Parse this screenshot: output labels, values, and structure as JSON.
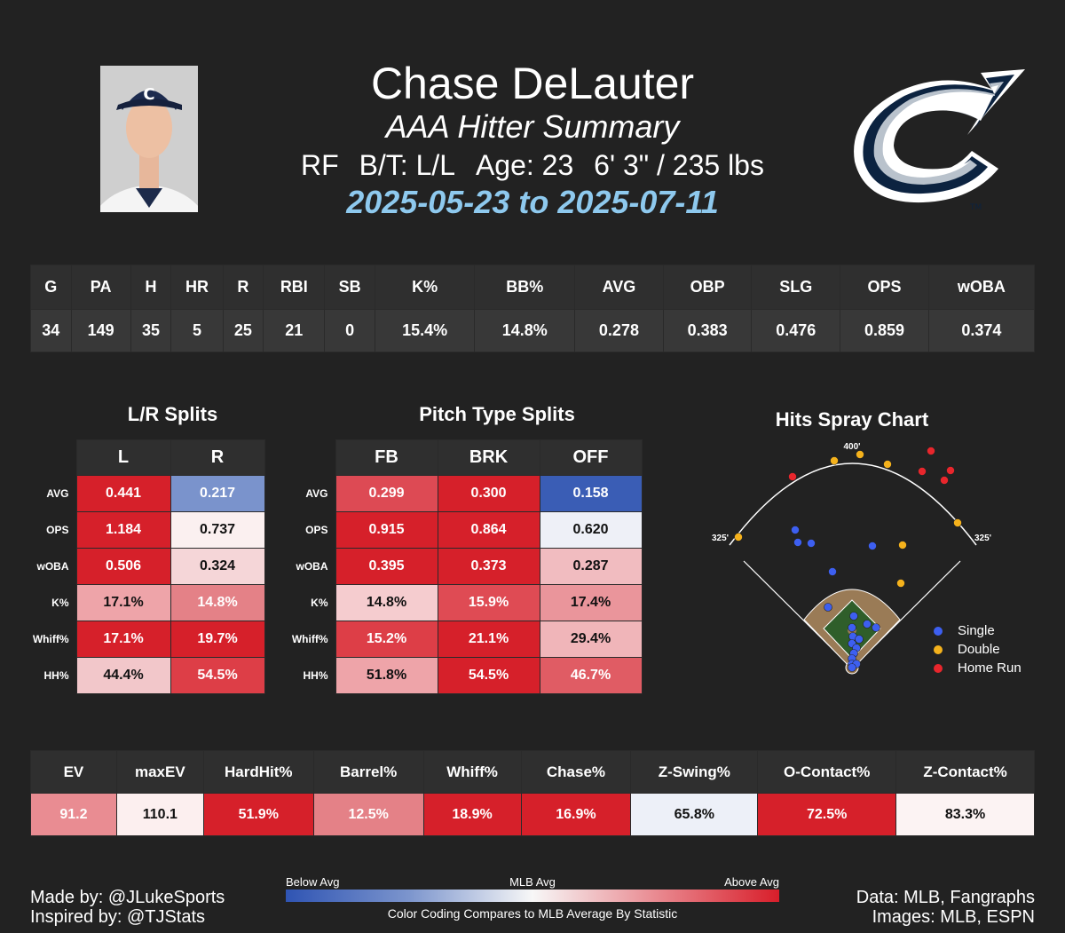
{
  "header": {
    "name": "Chase DeLauter",
    "subtitle": "AAA Hitter Summary",
    "position": "RF",
    "bat_throw": "B/T: L/L",
    "age": "Age: 23",
    "height_weight": "6' 3\" / 235 lbs",
    "date_range": "2025-05-23 to 2025-07-11"
  },
  "main_stats": {
    "headers": [
      "G",
      "PA",
      "H",
      "HR",
      "R",
      "RBI",
      "SB",
      "K%",
      "BB%",
      "AVG",
      "OBP",
      "SLG",
      "OPS",
      "wOBA"
    ],
    "values": [
      "34",
      "149",
      "35",
      "5",
      "25",
      "21",
      "0",
      "15.4%",
      "14.8%",
      "0.278",
      "0.383",
      "0.476",
      "0.859",
      "0.374"
    ]
  },
  "lr_splits": {
    "title": "L/R Splits",
    "columns": [
      "L",
      "R"
    ],
    "rows": [
      {
        "label": "AVG",
        "cells": [
          {
            "v": "0.441",
            "c": "#d6202a"
          },
          {
            "v": "0.217",
            "c": "#7a93cc"
          }
        ]
      },
      {
        "label": "OPS",
        "cells": [
          {
            "v": "1.184",
            "c": "#d6202a"
          },
          {
            "v": "0.737",
            "c": "#fbf0f0"
          }
        ]
      },
      {
        "label": "wOBA",
        "cells": [
          {
            "v": "0.506",
            "c": "#d6202a"
          },
          {
            "v": "0.324",
            "c": "#f5d6d8"
          }
        ]
      },
      {
        "label": "K%",
        "cells": [
          {
            "v": "17.1%",
            "c": "#eea4a9"
          },
          {
            "v": "14.8%",
            "c": "#e48187"
          }
        ]
      },
      {
        "label": "Whiff%",
        "cells": [
          {
            "v": "17.1%",
            "c": "#d6202a"
          },
          {
            "v": "19.7%",
            "c": "#d6202a"
          }
        ]
      },
      {
        "label": "HH%",
        "cells": [
          {
            "v": "44.4%",
            "c": "#f2c7ca"
          },
          {
            "v": "54.5%",
            "c": "#dd3e47"
          }
        ]
      }
    ]
  },
  "pitch_splits": {
    "title": "Pitch Type Splits",
    "columns": [
      "FB",
      "BRK",
      "OFF"
    ],
    "rows": [
      {
        "label": "AVG",
        "cells": [
          {
            "v": "0.299",
            "c": "#dd4a54"
          },
          {
            "v": "0.300",
            "c": "#d6202a"
          },
          {
            "v": "0.158",
            "c": "#3a5db5"
          }
        ]
      },
      {
        "label": "OPS",
        "cells": [
          {
            "v": "0.915",
            "c": "#d6202a"
          },
          {
            "v": "0.864",
            "c": "#d6202a"
          },
          {
            "v": "0.620",
            "c": "#eef0f7"
          }
        ]
      },
      {
        "label": "wOBA",
        "cells": [
          {
            "v": "0.395",
            "c": "#d6202a"
          },
          {
            "v": "0.373",
            "c": "#d6202a"
          },
          {
            "v": "0.287",
            "c": "#f1bcc0"
          }
        ]
      },
      {
        "label": "K%",
        "cells": [
          {
            "v": "14.8%",
            "c": "#f5cccf"
          },
          {
            "v": "15.9%",
            "c": "#df4b54"
          },
          {
            "v": "17.4%",
            "c": "#ea959b"
          }
        ]
      },
      {
        "label": "Whiff%",
        "cells": [
          {
            "v": "15.2%",
            "c": "#dd3e47"
          },
          {
            "v": "21.1%",
            "c": "#d6202a"
          },
          {
            "v": "29.4%",
            "c": "#f0b5b9"
          }
        ]
      },
      {
        "label": "HH%",
        "cells": [
          {
            "v": "51.8%",
            "c": "#eea4a9"
          },
          {
            "v": "54.5%",
            "c": "#d6202a"
          },
          {
            "v": "46.7%",
            "c": "#e05c64"
          }
        ]
      }
    ]
  },
  "spray": {
    "title": "Hits Spray Chart",
    "distances": {
      "center": "400'",
      "left": "325'",
      "right": "325'"
    },
    "legend": [
      {
        "label": "Single",
        "color": "#3d5ff0"
      },
      {
        "label": "Double",
        "color": "#f5b21c"
      },
      {
        "label": "Home Run",
        "color": "#e8262c"
      }
    ]
  },
  "bottom_stats": {
    "headers": [
      "EV",
      "maxEV",
      "HardHit%",
      "Barrel%",
      "Whiff%",
      "Chase%",
      "Z-Swing%",
      "O-Contact%",
      "Z-Contact%"
    ],
    "values": [
      {
        "v": "91.2",
        "c": "#e98c92"
      },
      {
        "v": "110.1",
        "c": "#fcefef"
      },
      {
        "v": "51.9%",
        "c": "#d6202a"
      },
      {
        "v": "12.5%",
        "c": "#e48187"
      },
      {
        "v": "18.9%",
        "c": "#d6202a"
      },
      {
        "v": "16.9%",
        "c": "#d6202a"
      },
      {
        "v": "65.8%",
        "c": "#edf0f8"
      },
      {
        "v": "72.5%",
        "c": "#d6202a"
      },
      {
        "v": "83.3%",
        "c": "#fcf3f3"
      }
    ]
  },
  "footer": {
    "made_by": "Made by: @JLukeSports",
    "inspired_by": "Inspired by: @TJStats",
    "data_source": "Data: MLB, Fangraphs",
    "images_source": "Images: MLB, ESPN",
    "scale_below": "Below Avg",
    "scale_mid": "MLB Avg",
    "scale_above": "Above Avg",
    "scale_caption": "Color Coding Compares to MLB Average By Statistic"
  },
  "colors": {
    "background": "#222222",
    "date_accent": "#8ec9ee",
    "above_avg": "#d6202a",
    "below_avg": "#2f54b3"
  }
}
